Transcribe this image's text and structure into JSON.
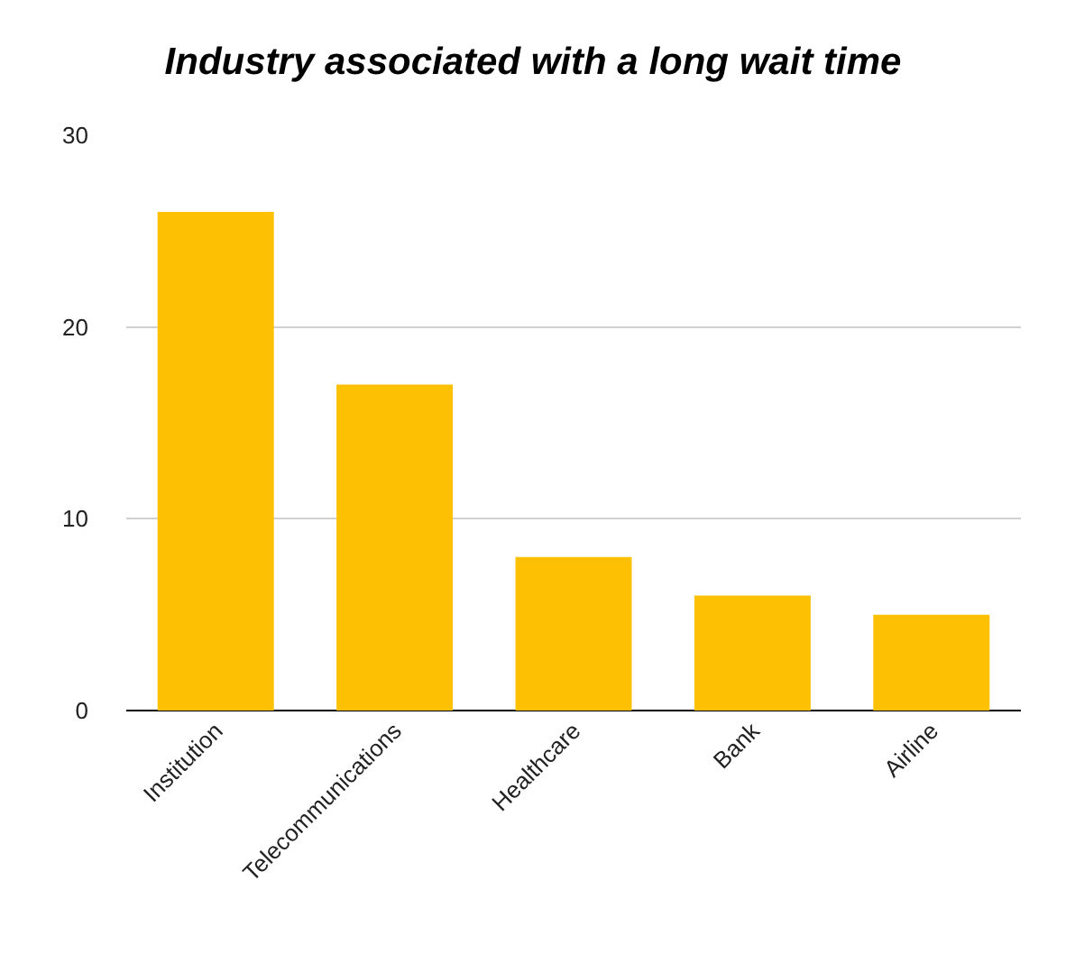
{
  "chart_data": {
    "type": "bar",
    "title": "Industry associated with a long wait time",
    "categories": [
      "Institution",
      "Telecommunications",
      "Healthcare",
      "Bank",
      "Airline"
    ],
    "values": [
      26,
      17,
      8,
      6,
      5
    ],
    "color": "#fdc003",
    "ylim": [
      0,
      30
    ],
    "yticks": [
      0,
      10,
      20,
      30
    ],
    "grid": "y"
  }
}
